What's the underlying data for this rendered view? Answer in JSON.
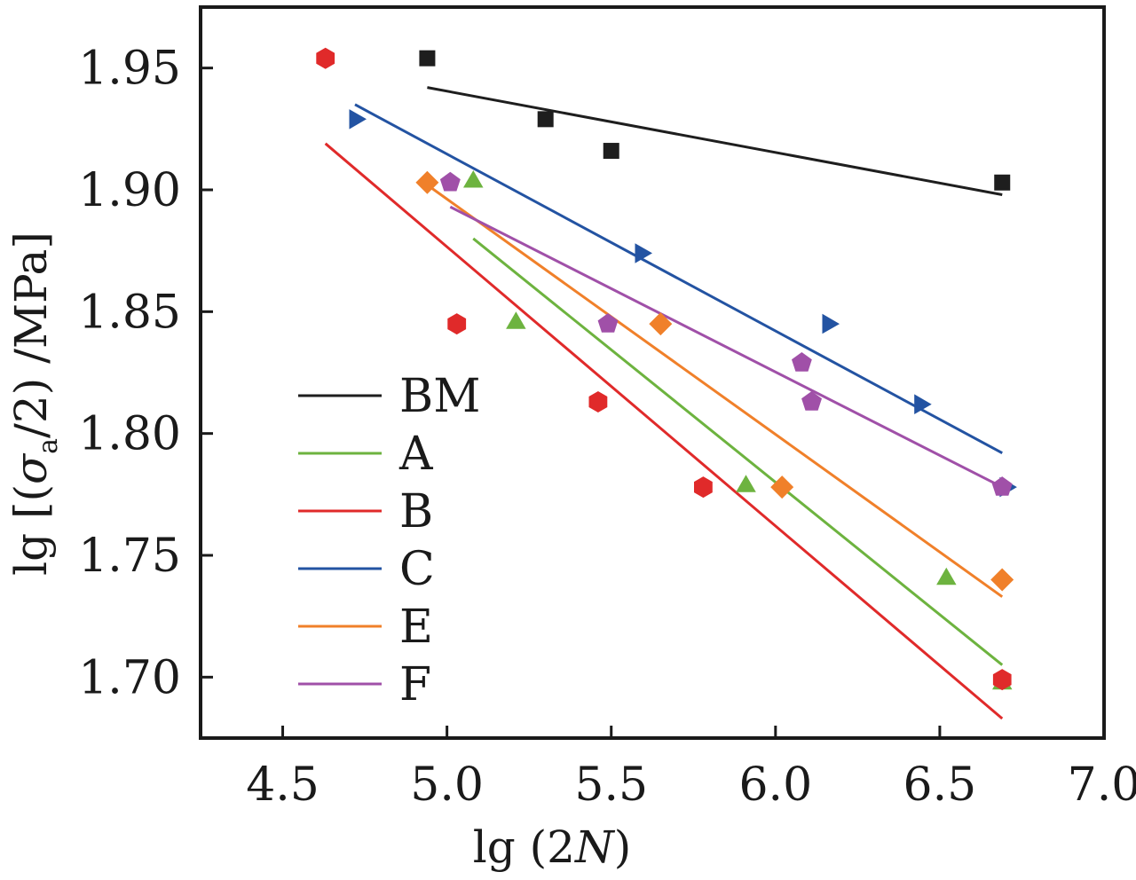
{
  "chart_data": {
    "type": "scatter",
    "title": "",
    "xlabel_parts": [
      "lg (2",
      "N",
      ")"
    ],
    "ylabel_parts": [
      "lg [(",
      "σ",
      "a",
      "/2) /MPa]"
    ],
    "xlim": [
      4.25,
      7.0
    ],
    "ylim": [
      1.675,
      1.975
    ],
    "xticks": [
      4.5,
      5.0,
      5.5,
      6.0,
      6.5,
      7.0
    ],
    "xtick_labels": [
      "4.5",
      "5.0",
      "5.5",
      "6.0",
      "6.5",
      "7.0"
    ],
    "yticks": [
      1.7,
      1.75,
      1.8,
      1.85,
      1.9,
      1.95
    ],
    "ytick_labels": [
      "1.70",
      "1.75",
      "1.80",
      "1.85",
      "1.90",
      "1.95"
    ],
    "grid": false,
    "legend_position": "left",
    "series": [
      {
        "name": "BM",
        "color": "#1e1e1e",
        "marker": "square",
        "points": [
          [
            4.94,
            1.954
          ],
          [
            5.3,
            1.929
          ],
          [
            5.5,
            1.916
          ],
          [
            6.69,
            1.903
          ]
        ],
        "fit": [
          [
            4.94,
            1.942
          ],
          [
            6.69,
            1.898
          ]
        ]
      },
      {
        "name": "A",
        "color": "#6db33f",
        "marker": "triangle-up",
        "points": [
          [
            5.08,
            1.904
          ],
          [
            5.21,
            1.846
          ],
          [
            5.91,
            1.779
          ],
          [
            6.52,
            1.741
          ],
          [
            6.69,
            1.698
          ]
        ],
        "fit": [
          [
            5.08,
            1.88
          ],
          [
            6.69,
            1.705
          ]
        ]
      },
      {
        "name": "B",
        "color": "#e02a2a",
        "marker": "hexagon",
        "points": [
          [
            4.63,
            1.954
          ],
          [
            5.03,
            1.845
          ],
          [
            5.46,
            1.813
          ],
          [
            5.78,
            1.778
          ],
          [
            6.69,
            1.699
          ]
        ],
        "fit": [
          [
            4.63,
            1.919
          ],
          [
            6.69,
            1.683
          ]
        ]
      },
      {
        "name": "C",
        "color": "#2353a2",
        "marker": "triangle-right",
        "points": [
          [
            4.72,
            1.929
          ],
          [
            5.59,
            1.874
          ],
          [
            6.16,
            1.845
          ],
          [
            6.44,
            1.812
          ],
          [
            6.7,
            1.778
          ]
        ],
        "fit": [
          [
            4.72,
            1.935
          ],
          [
            6.69,
            1.792
          ]
        ]
      },
      {
        "name": "E",
        "color": "#f0802a",
        "marker": "diamond",
        "points": [
          [
            4.94,
            1.903
          ],
          [
            5.65,
            1.845
          ],
          [
            6.02,
            1.778
          ],
          [
            6.69,
            1.74
          ]
        ],
        "fit": [
          [
            4.94,
            1.902
          ],
          [
            6.69,
            1.733
          ]
        ]
      },
      {
        "name": "F",
        "color": "#a050a8",
        "marker": "pentagon",
        "points": [
          [
            5.01,
            1.903
          ],
          [
            5.49,
            1.845
          ],
          [
            6.08,
            1.829
          ],
          [
            6.11,
            1.813
          ],
          [
            6.69,
            1.778
          ]
        ],
        "fit": [
          [
            5.01,
            1.893
          ],
          [
            6.69,
            1.778
          ]
        ]
      }
    ]
  }
}
